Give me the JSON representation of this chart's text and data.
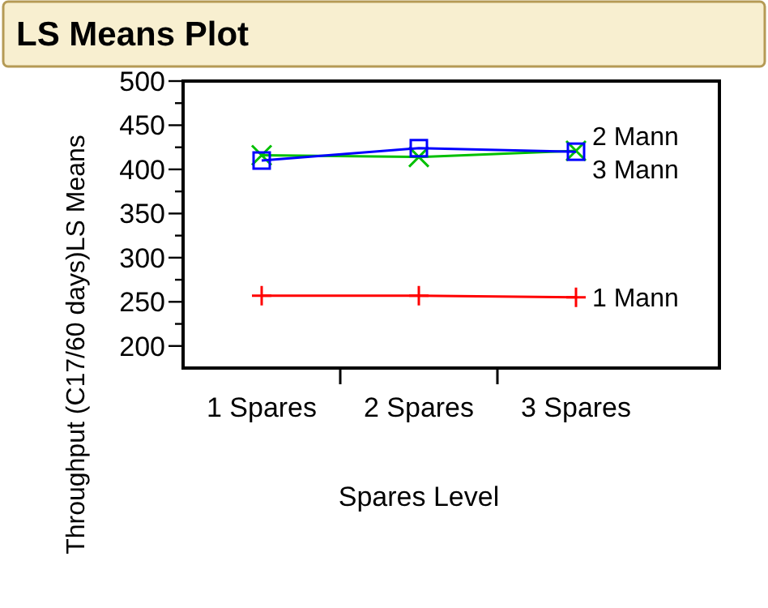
{
  "chart_data": {
    "type": "line",
    "title": "LS Means Plot",
    "xlabel": "Spares Level",
    "ylabel": "Throughput (C17/60 days)LS Means",
    "categories": [
      "1 Spares",
      "2 Spares",
      "3 Spares"
    ],
    "ylim": [
      175,
      500
    ],
    "yticks": [
      200,
      {
        "value": 225,
        "label": null
      },
      250,
      {
        "value": 275,
        "label": null
      },
      300,
      {
        "value": 325,
        "label": null
      },
      350,
      {
        "value": 375,
        "label": null
      },
      400,
      {
        "value": 425,
        "label": null
      },
      450,
      {
        "value": 475,
        "label": null
      },
      500
    ],
    "series": [
      {
        "name": "1 Mann",
        "color": "#ff0000",
        "marker": "plus",
        "values": [
          257,
          257,
          255
        ]
      },
      {
        "name": "2 Mann",
        "color": "#00c000",
        "marker": "cross",
        "values": [
          416,
          414,
          421
        ]
      },
      {
        "name": "3 Mann",
        "color": "#0000ff",
        "marker": "square",
        "values": [
          410,
          424,
          420
        ]
      }
    ]
  }
}
